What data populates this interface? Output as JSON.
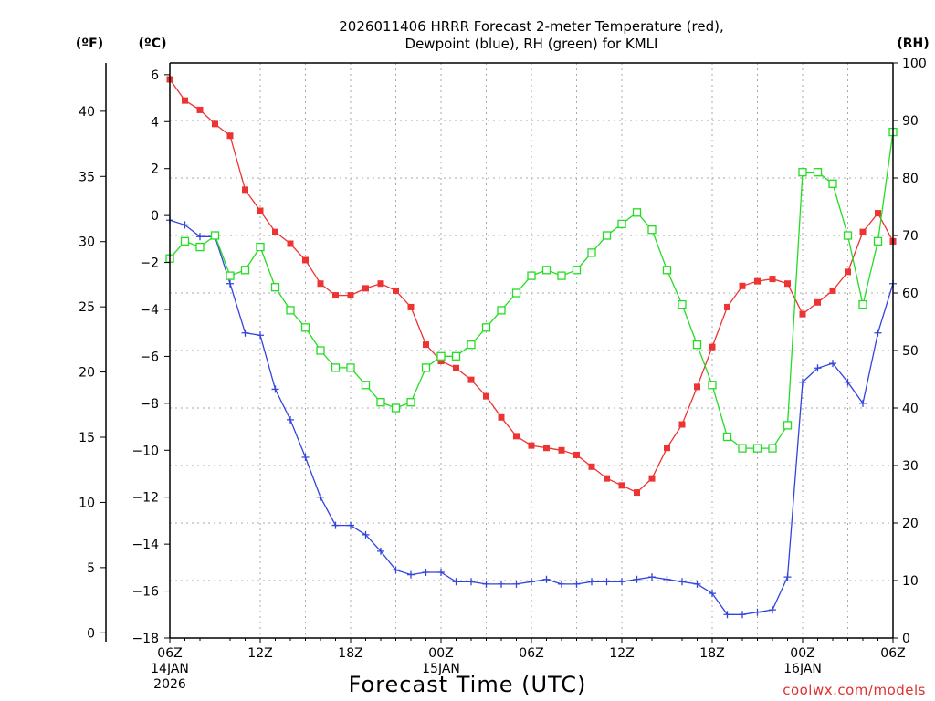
{
  "chart_data": {
    "type": "line",
    "title_line1": "2026011406 HRRR Forecast 2-meter Temperature (red),",
    "title_line2": "Dewpoint (blue), RH (green) for KMLI",
    "xlabel": "Forecast Time (UTC)",
    "unit_labels": {
      "fahrenheit": "(ºF)",
      "celsius": "(ºC)",
      "rh": "(RH)"
    },
    "x_hours": [
      0,
      1,
      2,
      3,
      4,
      5,
      6,
      7,
      8,
      9,
      10,
      11,
      12,
      13,
      14,
      15,
      16,
      17,
      18,
      19,
      20,
      21,
      22,
      23,
      24,
      25,
      26,
      27,
      28,
      29,
      30,
      31,
      32,
      33,
      34,
      35,
      36,
      37,
      38,
      39,
      40,
      41,
      42,
      43,
      44,
      45,
      46,
      47,
      48
    ],
    "x_ticks": [
      {
        "hour": 0,
        "label": "06Z",
        "sub1": "14JAN",
        "sub2": "2026"
      },
      {
        "hour": 6,
        "label": "12Z",
        "sub1": "",
        "sub2": ""
      },
      {
        "hour": 12,
        "label": "18Z",
        "sub1": "",
        "sub2": ""
      },
      {
        "hour": 18,
        "label": "00Z",
        "sub1": "15JAN",
        "sub2": ""
      },
      {
        "hour": 24,
        "label": "06Z",
        "sub1": "",
        "sub2": ""
      },
      {
        "hour": 30,
        "label": "12Z",
        "sub1": "",
        "sub2": ""
      },
      {
        "hour": 36,
        "label": "18Z",
        "sub1": "",
        "sub2": ""
      },
      {
        "hour": 42,
        "label": "00Z",
        "sub1": "16JAN",
        "sub2": ""
      },
      {
        "hour": 48,
        "label": "06Z",
        "sub1": "",
        "sub2": ""
      }
    ],
    "celsius_axis": {
      "range": [
        -18,
        6.5
      ],
      "ticks": [
        "6",
        "4",
        "2",
        "0",
        "−2",
        "−4",
        "−6",
        "−8",
        "−10",
        "−12",
        "−14",
        "−16",
        "−18"
      ],
      "tick_values": [
        6,
        4,
        2,
        0,
        -2,
        -4,
        -6,
        -8,
        -10,
        -12,
        -14,
        -16,
        -18
      ]
    },
    "fahrenheit_axis": {
      "ticks": [
        "40",
        "35",
        "30",
        "25",
        "20",
        "15",
        "10",
        "5",
        "0"
      ],
      "tick_values": [
        40,
        35,
        30,
        25,
        20,
        15,
        10,
        5,
        0
      ]
    },
    "rh_axis": {
      "range": [
        0,
        100
      ],
      "ticks": [
        "100",
        "90",
        "80",
        "70",
        "60",
        "50",
        "40",
        "30",
        "20",
        "10",
        "0"
      ],
      "tick_values": [
        100,
        90,
        80,
        70,
        60,
        50,
        40,
        30,
        20,
        10,
        0
      ]
    },
    "series": [
      {
        "name": "Temperature",
        "color": "#ee3333",
        "axis": "celsius",
        "marker": "filled-square",
        "values": [
          5.8,
          4.9,
          4.5,
          3.9,
          3.4,
          1.1,
          0.2,
          -0.7,
          -1.2,
          -1.9,
          -2.9,
          -3.4,
          -3.4,
          -3.1,
          -2.9,
          -3.2,
          -3.9,
          -5.5,
          -6.2,
          -6.5,
          -7.0,
          -7.7,
          -8.6,
          -9.4,
          -9.8,
          -9.9,
          -10.0,
          -10.2,
          -10.7,
          -11.2,
          -11.5,
          -11.8,
          -11.2,
          -9.9,
          -8.9,
          -7.3,
          -5.6,
          -3.9,
          -3.0,
          -2.8,
          -2.7,
          -2.9,
          -4.2,
          -3.7,
          -3.2,
          -2.4,
          -0.7,
          0.1,
          -1.1
        ]
      },
      {
        "name": "Dewpoint",
        "color": "#3344dd",
        "axis": "celsius",
        "marker": "plus",
        "values": [
          -0.2,
          -0.4,
          -0.9,
          -0.9,
          -2.9,
          -5.0,
          -5.1,
          -7.4,
          -8.7,
          -10.3,
          -12.0,
          -13.2,
          -13.2,
          -13.6,
          -14.3,
          -15.1,
          -15.3,
          -15.2,
          -15.2,
          -15.6,
          -15.6,
          -15.7,
          -15.7,
          -15.7,
          -15.6,
          -15.5,
          -15.7,
          -15.7,
          -15.6,
          -15.6,
          -15.6,
          -15.5,
          -15.4,
          -15.5,
          -15.6,
          -15.7,
          -16.1,
          -17.0,
          -17.0,
          -16.9,
          -16.8,
          -15.4,
          -7.1,
          -6.5,
          -6.3,
          -7.1,
          -8.0,
          -5.0,
          -2.9
        ]
      },
      {
        "name": "RH",
        "color": "#22dd22",
        "axis": "rh",
        "marker": "open-square",
        "values": [
          66,
          69,
          68,
          70,
          63,
          64,
          68,
          61,
          57,
          54,
          50,
          47,
          47,
          44,
          41,
          40,
          41,
          47,
          49,
          49,
          51,
          54,
          57,
          60,
          63,
          64,
          63,
          64,
          67,
          70,
          72,
          74,
          71,
          64,
          58,
          51,
          44,
          35,
          33,
          33,
          33,
          37,
          81,
          81,
          79,
          70,
          58,
          69,
          88
        ]
      }
    ]
  },
  "footer": {
    "brand": "coolwx.com/models"
  }
}
